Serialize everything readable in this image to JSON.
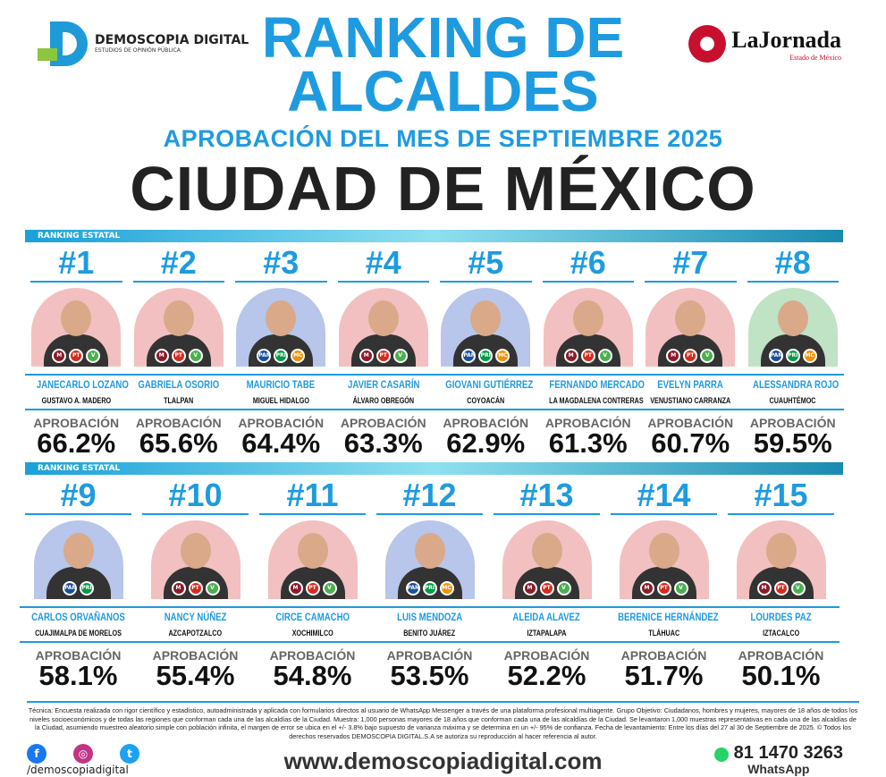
{
  "brand": {
    "name": "DEMOSCOPIA DIGITAL",
    "tagline": "ESTUDIOS DE OPINIÓN PÚBLICA"
  },
  "partner": {
    "name": "LaJornada",
    "sub": "Estado de México"
  },
  "header": {
    "line1": "RANKING DE",
    "line2": "ALCALDES",
    "subtitle": "APROBACIÓN DEL MES DE SEPTIEMBRE 2025",
    "city": "CIUDAD DE MÉXICO"
  },
  "banner_label": "RANKING ESTATAL",
  "approval_label": "APROBACIÓN",
  "colors": {
    "accent": "#1e9be0",
    "morena": "#8b1c2b",
    "pt": "#d52b1e",
    "verde": "#4caf50",
    "pan": "#1a4f9c",
    "pri": "#009a44",
    "mc": "#f39200"
  },
  "candidates": [
    {
      "rank": "#1",
      "name": "JANECARLO LOZANO",
      "district": "GUSTAVO A. MADERO",
      "approval": "66.2%",
      "parties": [
        "morena",
        "pt",
        "verde"
      ],
      "bg": "#f2c0c0"
    },
    {
      "rank": "#2",
      "name": "GABRIELA OSORIO",
      "district": "TLALPAN",
      "approval": "65.6%",
      "parties": [
        "morena",
        "pt",
        "verde"
      ],
      "bg": "#f2c0c0"
    },
    {
      "rank": "#3",
      "name": "MAURICIO TABE",
      "district": "MIGUEL HIDALGO",
      "approval": "64.4%",
      "parties": [
        "pan",
        "pri",
        "mc"
      ],
      "bg": "#b7c6ea"
    },
    {
      "rank": "#4",
      "name": "JAVIER CASARÍN",
      "district": "ÁLVARO OBREGÓN",
      "approval": "63.3%",
      "parties": [
        "morena",
        "pt",
        "verde"
      ],
      "bg": "#f2c0c0"
    },
    {
      "rank": "#5",
      "name": "GIOVANI GUTIÉRREZ",
      "district": "COYOACÁN",
      "approval": "62.9%",
      "parties": [
        "pan",
        "pri",
        "mc"
      ],
      "bg": "#b7c6ea"
    },
    {
      "rank": "#6",
      "name": "FERNANDO MERCADO",
      "district": "LA MAGDALENA CONTRERAS",
      "approval": "61.3%",
      "parties": [
        "morena",
        "pt",
        "verde"
      ],
      "bg": "#f2c0c0"
    },
    {
      "rank": "#7",
      "name": "EVELYN PARRA",
      "district": "VENUSTIANO CARRANZA",
      "approval": "60.7%",
      "parties": [
        "morena",
        "pt",
        "verde"
      ],
      "bg": "#f2c0c0"
    },
    {
      "rank": "#8",
      "name": "ALESSANDRA ROJO",
      "district": "CUAUHTÉMOC",
      "approval": "59.5%",
      "parties": [
        "pan",
        "pri",
        "mc"
      ],
      "bg": "#bfe3c4"
    },
    {
      "rank": "#9",
      "name": "CARLOS ORVAÑANOS",
      "district": "CUAJIMALPA DE MORELOS",
      "approval": "58.1%",
      "parties": [
        "pan",
        "pri"
      ],
      "bg": "#b7c6ea"
    },
    {
      "rank": "#10",
      "name": "NANCY NÚÑEZ",
      "district": "AZCAPOTZALCO",
      "approval": "55.4%",
      "parties": [
        "morena",
        "pt",
        "verde"
      ],
      "bg": "#f2c0c0"
    },
    {
      "rank": "#11",
      "name": "CIRCE CAMACHO",
      "district": "XOCHIMILCO",
      "approval": "54.8%",
      "parties": [
        "morena",
        "pt",
        "verde"
      ],
      "bg": "#f2c0c0"
    },
    {
      "rank": "#12",
      "name": "LUIS MENDOZA",
      "district": "BENITO JUÁREZ",
      "approval": "53.5%",
      "parties": [
        "pan",
        "pri",
        "mc"
      ],
      "bg": "#b7c6ea"
    },
    {
      "rank": "#13",
      "name": "ALEIDA ALAVEZ",
      "district": "IZTAPALAPA",
      "approval": "52.2%",
      "parties": [
        "morena",
        "pt",
        "verde"
      ],
      "bg": "#f2c0c0"
    },
    {
      "rank": "#14",
      "name": "BERENICE HERNÁNDEZ",
      "district": "TLÁHUAC",
      "approval": "51.7%",
      "parties": [
        "morena",
        "pt",
        "verde"
      ],
      "bg": "#f2c0c0"
    },
    {
      "rank": "#15",
      "name": "LOURDES PAZ",
      "district": "IZTACALCO",
      "approval": "50.1%",
      "parties": [
        "morena",
        "pt",
        "verde"
      ],
      "bg": "#f2c0c0"
    }
  ],
  "footer": {
    "methodology": "Técnica: Encuesta realizada con rigor científico y estadístico, autoadministrada y aplicada con formularios directos al usuario de WhatsApp Messenger a través de una plataforma profesional multiagente. Grupo Objetivo: Ciudadanos, hombres y mujeres, mayores de 18 años de todos los niveles socioeconómicos y de todas las regiones que conforman cada una de las alcaldías de la Ciudad. Muestra: 1,000 personas mayores de 18 años que conforman cada una de las alcaldías de la Ciudad. Se levantaron 1,000 muestras representativas en cada una de las alcaldías de la Ciudad, asumiendo muestreo aleatorio simple con población infinita, el margen de error se ubica en el +/- 3.8% bajo supuesto de varianza máxima y se determina en un +/- 95% de confianza. Fecha de levantamiento: Entre los días del 27 al 30 de Septiembre de 2025. © Todos los derechos reservados DEMOSCOPIA DIGITAL.S.A se autoriza su reproducción al hacer referencia al autor.",
    "handle": "/demoscopiadigital",
    "url": "www.demoscopiadigital.com",
    "phone": "81 1470 3263",
    "whatsapp": "WhatsApp"
  }
}
